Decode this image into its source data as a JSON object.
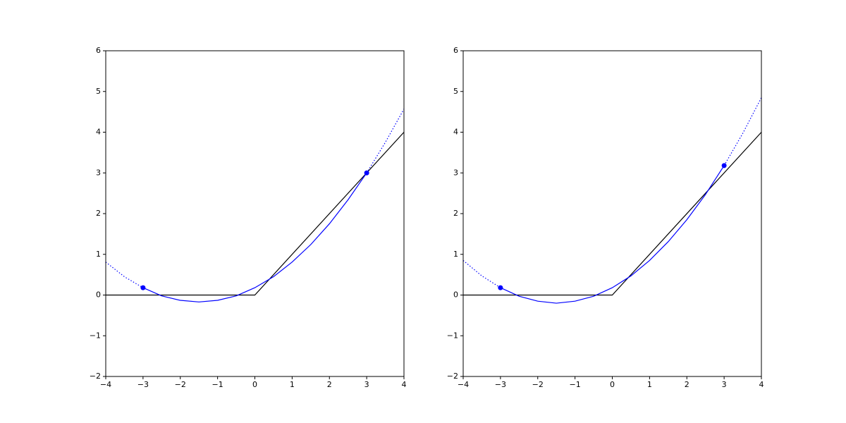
{
  "chart_data": [
    {
      "type": "line",
      "xlim": [
        -4,
        4
      ],
      "ylim": [
        -2,
        6
      ],
      "xticks": [
        {
          "value": -4,
          "label": "−4"
        },
        {
          "value": -3,
          "label": "−3"
        },
        {
          "value": -2,
          "label": "−2"
        },
        {
          "value": -1,
          "label": "−1"
        },
        0,
        1,
        2,
        3,
        4
      ],
      "yticks": [
        {
          "value": -2,
          "label": "−2"
        },
        {
          "value": -1,
          "label": "−1"
        },
        0,
        1,
        2,
        3,
        4,
        5,
        6
      ],
      "series": [
        {
          "color": "#000000",
          "style": "solid",
          "x": [
            -4,
            0,
            4
          ],
          "values": [
            0,
            0,
            4
          ]
        },
        {
          "color": "#0000ff",
          "style": "dotted",
          "x": [
            -4,
            -3.5,
            -3
          ],
          "values": [
            0.81,
            0.45,
            0.18
          ]
        },
        {
          "color": "#0000ff",
          "style": "solid",
          "x": [
            -3,
            -2.5,
            -2,
            -1.5,
            -1,
            -0.5,
            0,
            0.5,
            1,
            1.5,
            2,
            2.5,
            3
          ],
          "values": [
            0.18,
            -0.02,
            -0.13,
            -0.17,
            -0.13,
            -0.02,
            0.18,
            0.45,
            0.81,
            1.24,
            1.75,
            2.34,
            3.0
          ]
        },
        {
          "color": "#0000ff",
          "style": "dotted",
          "x": [
            3,
            3.5,
            4
          ],
          "values": [
            3.0,
            3.75,
            4.57
          ]
        },
        {
          "color": "#0000ff",
          "style": "markers",
          "x": [
            -3,
            3
          ],
          "values": [
            0.18,
            3.0
          ]
        }
      ]
    },
    {
      "type": "line",
      "xlim": [
        -4,
        4
      ],
      "ylim": [
        -2,
        6
      ],
      "xticks": [
        {
          "value": -4,
          "label": "−4"
        },
        {
          "value": -3,
          "label": "−3"
        },
        {
          "value": -2,
          "label": "−2"
        },
        {
          "value": -1,
          "label": "−1"
        },
        0,
        1,
        2,
        3,
        4
      ],
      "yticks": [
        {
          "value": -2,
          "label": "−2"
        },
        {
          "value": -1,
          "label": "−1"
        },
        0,
        1,
        2,
        3,
        4,
        5,
        6
      ],
      "series": [
        {
          "color": "#000000",
          "style": "solid",
          "x": [
            -4,
            0,
            4
          ],
          "values": [
            0,
            0,
            4
          ]
        },
        {
          "color": "#0000ff",
          "style": "dotted",
          "x": [
            -4,
            -3.5,
            -3
          ],
          "values": [
            0.85,
            0.47,
            0.18
          ]
        },
        {
          "color": "#0000ff",
          "style": "solid",
          "x": [
            -3,
            -2.5,
            -2,
            -1.5,
            -1,
            -0.5,
            0,
            0.5,
            1,
            1.5,
            2,
            2.5,
            3
          ],
          "values": [
            0.18,
            -0.03,
            -0.15,
            -0.2,
            -0.15,
            -0.03,
            0.18,
            0.47,
            0.85,
            1.31,
            1.85,
            2.47,
            3.18
          ]
        },
        {
          "color": "#0000ff",
          "style": "dotted",
          "x": [
            3,
            3.5,
            4
          ],
          "values": [
            3.18,
            3.97,
            4.85
          ]
        },
        {
          "color": "#0000ff",
          "style": "markers",
          "x": [
            -3,
            3
          ],
          "values": [
            0.18,
            3.18
          ]
        }
      ]
    }
  ]
}
